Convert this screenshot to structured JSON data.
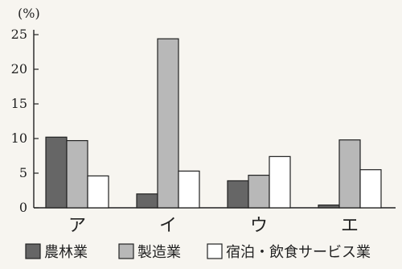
{
  "chart_data": {
    "type": "bar",
    "unit": "(%)",
    "categories": [
      "ア",
      "イ",
      "ウ",
      "エ"
    ],
    "series": [
      {
        "name": "農林業",
        "color": "#666666",
        "values": [
          10.2,
          2.0,
          3.9,
          0.4
        ]
      },
      {
        "name": "製造業",
        "color": "#b8b8b8",
        "values": [
          9.7,
          24.4,
          4.7,
          9.8
        ]
      },
      {
        "name": "宿泊・飲食サービス業",
        "color": "#ffffff",
        "values": [
          4.6,
          5.3,
          7.4,
          5.5
        ]
      }
    ],
    "ylim": [
      0,
      25
    ],
    "yticks": [
      0,
      5,
      10,
      15,
      20,
      25
    ],
    "grid": false,
    "legend": "bottom"
  }
}
